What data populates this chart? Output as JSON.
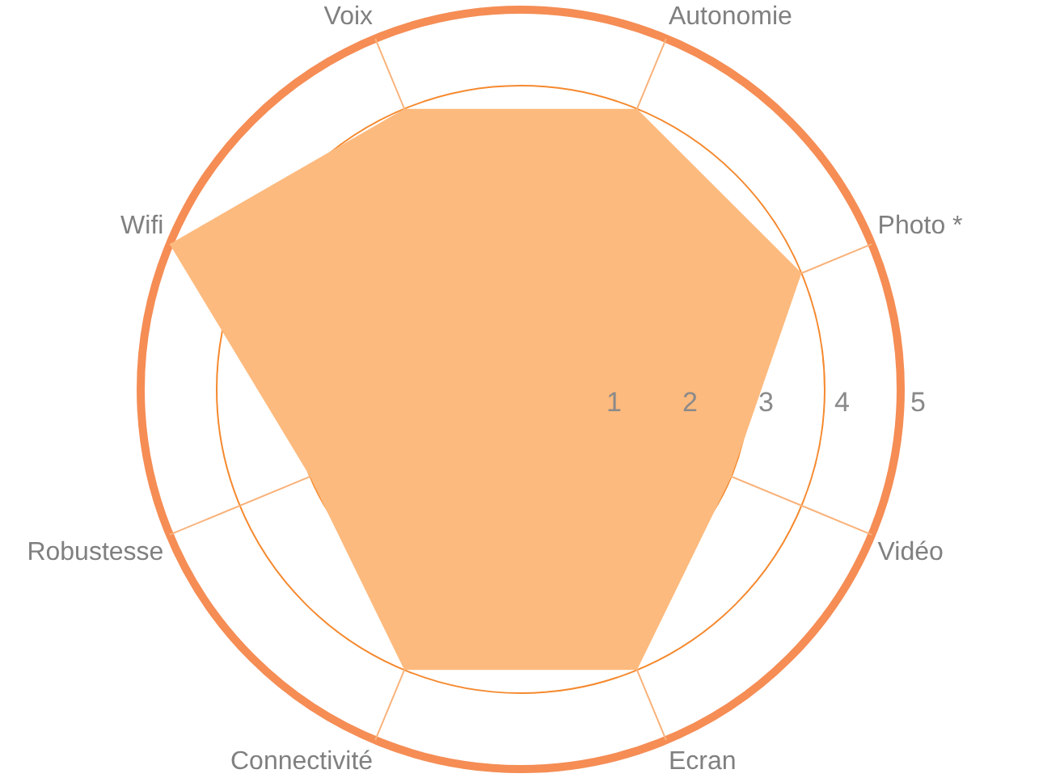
{
  "chart_data": {
    "type": "radar",
    "categories": [
      "Autonomie",
      "Photo *",
      "Vidéo",
      "Ecran",
      "Connectivité",
      "Robustesse",
      "Wifi",
      "Voix"
    ],
    "series": [
      {
        "color": "#fdba7e",
        "values": [
          4,
          4,
          3,
          4,
          4,
          3,
          5,
          4
        ]
      }
    ],
    "ylim": [
      0,
      5
    ],
    "yticks": [
      1,
      2,
      3,
      4,
      5
    ],
    "grid": true,
    "legend": false,
    "marker": "none"
  }
}
